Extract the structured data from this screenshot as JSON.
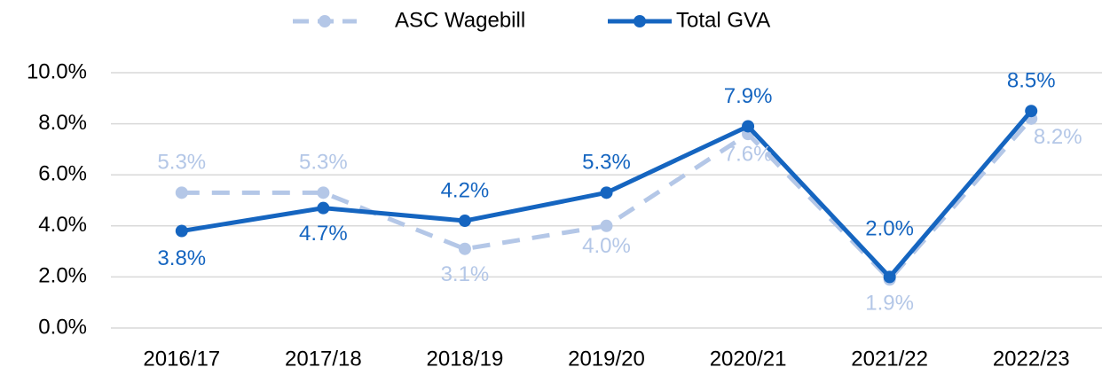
{
  "chart_data": {
    "type": "line",
    "categories": [
      "2016/17",
      "2017/18",
      "2018/19",
      "2019/20",
      "2020/21",
      "2021/22",
      "2022/23"
    ],
    "series": [
      {
        "name": "ASC Wagebill",
        "color": "#b4c7e7",
        "dashed": true,
        "values": [
          5.3,
          5.3,
          3.1,
          4.0,
          7.6,
          1.9,
          8.2
        ],
        "value_labels": [
          "5.3%",
          "5.3%",
          "3.1%",
          "4.0%",
          "7.6%",
          "1.9%",
          "8.2%"
        ]
      },
      {
        "name": "Total GVA",
        "color": "#1565c0",
        "dashed": false,
        "values": [
          3.8,
          4.7,
          4.2,
          5.3,
          7.9,
          2.0,
          8.5
        ],
        "value_labels": [
          "3.8%",
          "4.7%",
          "4.2%",
          "5.3%",
          "7.9%",
          "2.0%",
          "8.5%"
        ]
      }
    ],
    "ylim": [
      0,
      10
    ],
    "yticks": [
      {
        "value": 0,
        "label": "0.0%"
      },
      {
        "value": 2,
        "label": "2.0%"
      },
      {
        "value": 4,
        "label": "4.0%"
      },
      {
        "value": 6,
        "label": "6.0%"
      },
      {
        "value": 8,
        "label": "8.0%"
      },
      {
        "value": 10,
        "label": "10.0%"
      }
    ],
    "grid": true,
    "legend": "top"
  }
}
